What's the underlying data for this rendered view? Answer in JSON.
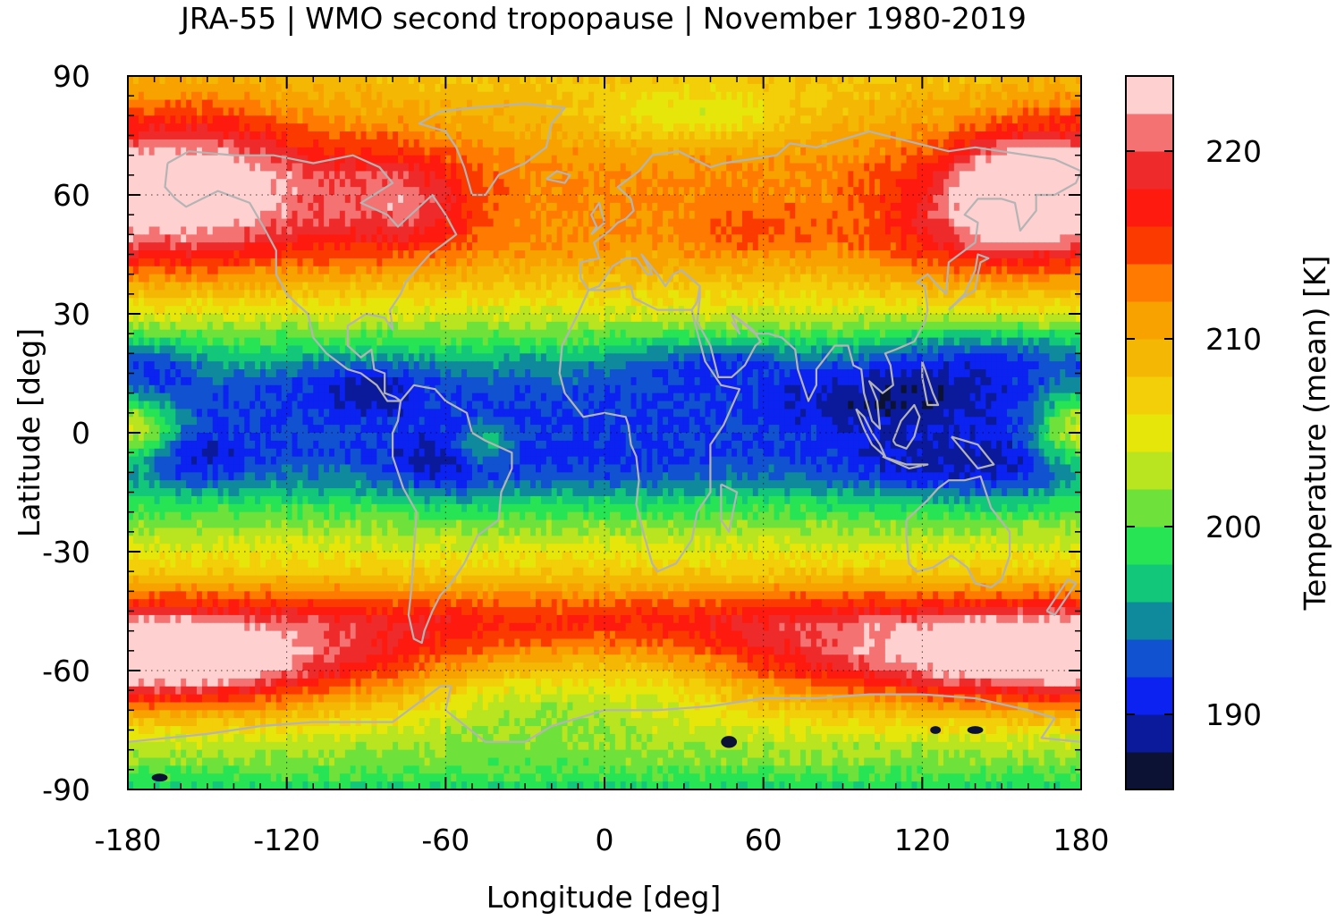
{
  "chart_data": {
    "type": "heatmap",
    "title": "JRA-55 | WMO second tropopause | November 1980-2019",
    "xlabel": "Longitude [deg]",
    "ylabel": "Latitude [deg]",
    "xlim": [
      -180,
      180
    ],
    "ylim": [
      -90,
      90
    ],
    "xticks": [
      -180,
      -120,
      -60,
      0,
      60,
      120,
      180
    ],
    "yticks": [
      90,
      60,
      30,
      0,
      -30,
      -60,
      -90
    ],
    "xtick_labels": [
      "-180",
      "-120",
      "-60",
      "0",
      "60",
      "120",
      "180"
    ],
    "ytick_labels": [
      "90",
      "60",
      "30",
      "0",
      "-30",
      "-60",
      "-90"
    ],
    "grid": true,
    "colorbar": {
      "label": "Temperature (mean) [K]",
      "range": [
        186,
        224
      ],
      "ticks": [
        190,
        200,
        210,
        220
      ],
      "tick_labels": [
        "190",
        "200",
        "210",
        "220"
      ],
      "placement": "right",
      "levels": [
        {
          "min": 186,
          "max": 188,
          "color": "#0c1233"
        },
        {
          "min": 188,
          "max": 190,
          "color": "#0a1a9a"
        },
        {
          "min": 190,
          "max": 192,
          "color": "#0b22f0"
        },
        {
          "min": 192,
          "max": 194,
          "color": "#1152d0"
        },
        {
          "min": 194,
          "max": 196,
          "color": "#0f8a9c"
        },
        {
          "min": 196,
          "max": 198,
          "color": "#13c77a"
        },
        {
          "min": 198,
          "max": 200,
          "color": "#27e454"
        },
        {
          "min": 200,
          "max": 202,
          "color": "#6ee23a"
        },
        {
          "min": 202,
          "max": 204,
          "color": "#b8e420"
        },
        {
          "min": 204,
          "max": 206,
          "color": "#e6e60a"
        },
        {
          "min": 206,
          "max": 208,
          "color": "#f2cf08"
        },
        {
          "min": 208,
          "max": 210,
          "color": "#f4b804"
        },
        {
          "min": 210,
          "max": 212,
          "color": "#f8a200"
        },
        {
          "min": 212,
          "max": 214,
          "color": "#ff7a00"
        },
        {
          "min": 214,
          "max": 216,
          "color": "#fb3a00"
        },
        {
          "min": 216,
          "max": 218,
          "color": "#ff1a10"
        },
        {
          "min": 218,
          "max": 220,
          "color": "#ef2a2a"
        },
        {
          "min": 220,
          "max": 222,
          "color": "#f47272"
        },
        {
          "min": 222,
          "max": 224,
          "color": "#ffd0d0"
        }
      ]
    },
    "lat_profile": {
      "lat": [
        90,
        84,
        78,
        72,
        66,
        60,
        54,
        48,
        42,
        36,
        30,
        24,
        18,
        12,
        6,
        0,
        -6,
        -12,
        -18,
        -24,
        -30,
        -36,
        -42,
        -48,
        -54,
        -60,
        -66,
        -72,
        -78,
        -84,
        -90
      ],
      "mean": [
        208,
        209,
        210,
        211,
        212,
        212,
        212,
        212,
        210,
        207,
        204,
        200,
        196,
        193,
        192,
        193,
        193,
        195,
        199,
        202,
        205,
        208,
        214,
        219,
        218,
        215,
        210,
        206,
        203,
        201,
        198
      ]
    },
    "anomalies": [
      {
        "lon": -160,
        "lat": 63,
        "delta": 10,
        "rx": 28,
        "ry": 14
      },
      {
        "lon": -120,
        "lat": 60,
        "delta": 6,
        "rx": 38,
        "ry": 12
      },
      {
        "lon": -75,
        "lat": 58,
        "delta": 6,
        "rx": 18,
        "ry": 9
      },
      {
        "lon": 140,
        "lat": 55,
        "delta": 7,
        "rx": 28,
        "ry": 12
      },
      {
        "lon": 155,
        "lat": 62,
        "delta": 10,
        "rx": 16,
        "ry": 10
      },
      {
        "lon": 35,
        "lat": 80,
        "delta": -5,
        "rx": 28,
        "ry": 5
      },
      {
        "lon": 55,
        "lat": 52,
        "delta": 3,
        "rx": 15,
        "ry": 4
      },
      {
        "lon": -150,
        "lat": -60,
        "delta": 8,
        "rx": 36,
        "ry": 8
      },
      {
        "lon": 145,
        "lat": -58,
        "delta": 8,
        "rx": 42,
        "ry": 8
      },
      {
        "lon": -30,
        "lat": -62,
        "delta": -6,
        "rx": 30,
        "ry": 10
      },
      {
        "lon": 20,
        "lat": -60,
        "delta": -5,
        "rx": 25,
        "ry": 8
      },
      {
        "lon": -175,
        "lat": 0,
        "delta": 8,
        "rx": 12,
        "ry": 8
      },
      {
        "lon": 175,
        "lat": 0,
        "delta": 6,
        "rx": 10,
        "ry": 8
      },
      {
        "lon": -45,
        "lat": -3,
        "delta": 6,
        "rx": 8,
        "ry": 4
      },
      {
        "lon": -60,
        "lat": -8,
        "delta": -4,
        "rx": 18,
        "ry": 7
      },
      {
        "lon": 110,
        "lat": 10,
        "delta": -4,
        "rx": 30,
        "ry": 10
      },
      {
        "lon": 140,
        "lat": -10,
        "delta": -4,
        "rx": 35,
        "ry": 6
      },
      {
        "lon": 150,
        "lat": 20,
        "delta": -4,
        "rx": 25,
        "ry": 5
      },
      {
        "lon": 40,
        "lat": 18,
        "delta": -4,
        "rx": 22,
        "ry": 4
      },
      {
        "lon": -90,
        "lat": 12,
        "delta": -4,
        "rx": 15,
        "ry": 5
      },
      {
        "lon": -170,
        "lat": 15,
        "delta": -4,
        "rx": 10,
        "ry": 5
      },
      {
        "lon": -160,
        "lat": -6,
        "delta": -4,
        "rx": 20,
        "ry": 5
      },
      {
        "lon": 0,
        "lat": -8,
        "delta": -2,
        "rx": 30,
        "ry": 8
      }
    ],
    "dark_patches": [
      {
        "lon": 47,
        "lat": -78,
        "rx": 3,
        "ry": 1.5
      },
      {
        "lon": 125,
        "lat": -75,
        "rx": 2,
        "ry": 1
      },
      {
        "lon": 140,
        "lat": -75,
        "rx": 3,
        "ry": 1
      },
      {
        "lon": -168,
        "lat": -87,
        "rx": 3,
        "ry": 1
      }
    ]
  }
}
